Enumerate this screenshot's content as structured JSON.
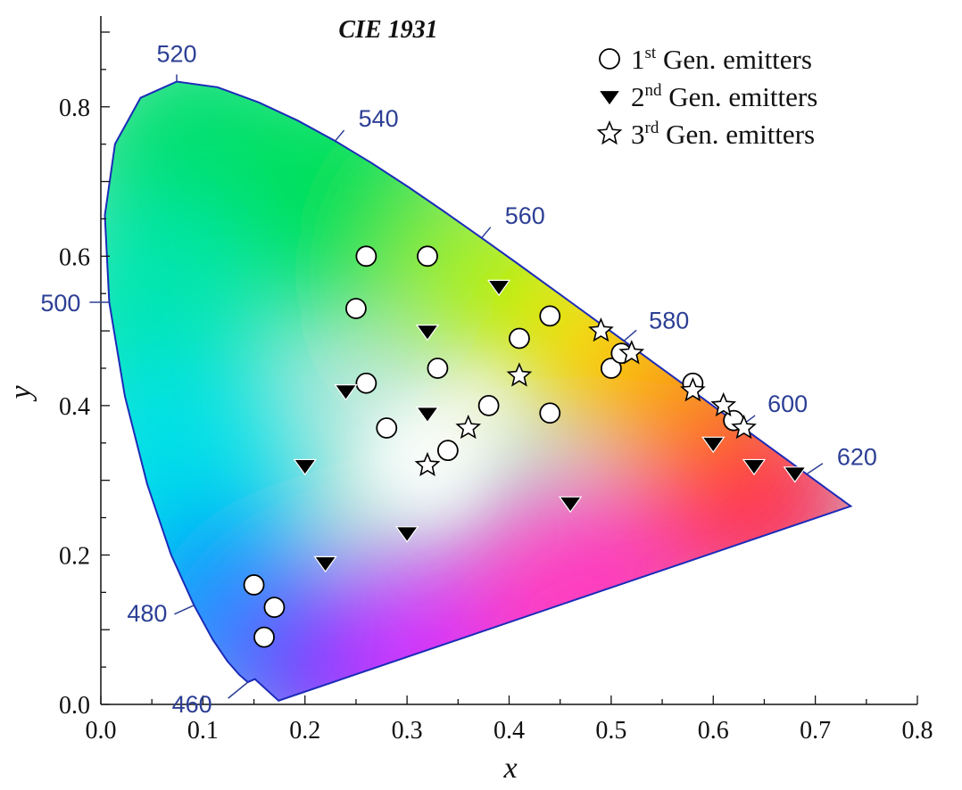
{
  "chart_data": {
    "type": "scatter",
    "title": "CIE 1931",
    "xlabel": "x",
    "ylabel": "y",
    "xlim": [
      0.0,
      0.8
    ],
    "ylim": [
      0.0,
      0.9
    ],
    "x_ticks": [
      "0.0",
      "0.1",
      "0.2",
      "0.3",
      "0.4",
      "0.5",
      "0.6",
      "0.7",
      "0.8"
    ],
    "y_ticks": [
      "0.0",
      "0.2",
      "0.4",
      "0.6",
      "0.8"
    ],
    "grid": false,
    "legend_position": "top-right",
    "spectral_locus": [
      [
        0.1741,
        0.005
      ],
      [
        0.151,
        0.0339
      ],
      [
        0.144,
        0.0297
      ],
      [
        0.1355,
        0.0399
      ],
      [
        0.1241,
        0.0578
      ],
      [
        0.1096,
        0.0868
      ],
      [
        0.0913,
        0.1327
      ],
      [
        0.0687,
        0.2007
      ],
      [
        0.0454,
        0.295
      ],
      [
        0.0235,
        0.4127
      ],
      [
        0.0082,
        0.5384
      ],
      [
        0.0039,
        0.6548
      ],
      [
        0.0139,
        0.7502
      ],
      [
        0.0389,
        0.812
      ],
      [
        0.0743,
        0.8338
      ],
      [
        0.1142,
        0.8262
      ],
      [
        0.1547,
        0.8059
      ],
      [
        0.1929,
        0.7816
      ],
      [
        0.2296,
        0.7543
      ],
      [
        0.2658,
        0.7243
      ],
      [
        0.3016,
        0.6923
      ],
      [
        0.3373,
        0.6589
      ],
      [
        0.3731,
        0.6245
      ],
      [
        0.4087,
        0.5896
      ],
      [
        0.4441,
        0.5547
      ],
      [
        0.4788,
        0.5202
      ],
      [
        0.5125,
        0.4866
      ],
      [
        0.5448,
        0.4544
      ],
      [
        0.5752,
        0.4242
      ],
      [
        0.6029,
        0.3965
      ],
      [
        0.627,
        0.3725
      ],
      [
        0.6482,
        0.3514
      ],
      [
        0.6658,
        0.334
      ],
      [
        0.6801,
        0.3197
      ],
      [
        0.6915,
        0.3083
      ],
      [
        0.7006,
        0.2993
      ],
      [
        0.7079,
        0.292
      ],
      [
        0.714,
        0.2859
      ],
      [
        0.719,
        0.2809
      ],
      [
        0.723,
        0.277
      ],
      [
        0.726,
        0.274
      ],
      [
        0.7283,
        0.2717
      ],
      [
        0.73,
        0.27
      ],
      [
        0.7311,
        0.2689
      ],
      [
        0.732,
        0.268
      ],
      [
        0.7334,
        0.2666
      ],
      [
        0.7347,
        0.2653
      ]
    ],
    "wavelength_labels": [
      {
        "label": "460",
        "x": 0.144,
        "y": 0.0297
      },
      {
        "label": "480",
        "x": 0.0913,
        "y": 0.1327
      },
      {
        "label": "500",
        "x": 0.0082,
        "y": 0.5384
      },
      {
        "label": "520",
        "x": 0.0743,
        "y": 0.8338
      },
      {
        "label": "540",
        "x": 0.2296,
        "y": 0.7543
      },
      {
        "label": "560",
        "x": 0.3731,
        "y": 0.6245
      },
      {
        "label": "580",
        "x": 0.5125,
        "y": 0.4866
      },
      {
        "label": "600",
        "x": 0.627,
        "y": 0.3725
      },
      {
        "label": "620",
        "x": 0.6915,
        "y": 0.3083
      }
    ],
    "series": [
      {
        "name": "1st Gen. emitters",
        "name_parts": [
          "1",
          "st",
          " Gen. emitters"
        ],
        "marker": "circle",
        "points": [
          [
            0.15,
            0.16
          ],
          [
            0.17,
            0.13
          ],
          [
            0.16,
            0.09
          ],
          [
            0.26,
            0.6
          ],
          [
            0.32,
            0.6
          ],
          [
            0.25,
            0.53
          ],
          [
            0.26,
            0.43
          ],
          [
            0.28,
            0.37
          ],
          [
            0.33,
            0.45
          ],
          [
            0.34,
            0.34
          ],
          [
            0.38,
            0.4
          ],
          [
            0.41,
            0.49
          ],
          [
            0.44,
            0.52
          ],
          [
            0.44,
            0.39
          ],
          [
            0.5,
            0.45
          ],
          [
            0.51,
            0.47
          ],
          [
            0.58,
            0.43
          ],
          [
            0.62,
            0.38
          ]
        ]
      },
      {
        "name": "2nd Gen. emitters",
        "name_parts": [
          "2",
          "nd",
          " Gen. emitters"
        ],
        "marker": "triangle-down",
        "points": [
          [
            0.39,
            0.56
          ],
          [
            0.32,
            0.5
          ],
          [
            0.24,
            0.42
          ],
          [
            0.32,
            0.39
          ],
          [
            0.2,
            0.32
          ],
          [
            0.3,
            0.23
          ],
          [
            0.22,
            0.19
          ],
          [
            0.46,
            0.27
          ],
          [
            0.6,
            0.35
          ],
          [
            0.64,
            0.32
          ],
          [
            0.68,
            0.31
          ]
        ]
      },
      {
        "name": "3rd Gen. emitters",
        "name_parts": [
          "3",
          "rd",
          " Gen. emitters"
        ],
        "marker": "star",
        "points": [
          [
            0.32,
            0.32
          ],
          [
            0.36,
            0.37
          ],
          [
            0.41,
            0.44
          ],
          [
            0.49,
            0.5
          ],
          [
            0.52,
            0.47
          ],
          [
            0.58,
            0.42
          ],
          [
            0.61,
            0.4
          ],
          [
            0.63,
            0.37
          ]
        ]
      }
    ]
  },
  "colors": {
    "locus_stroke": "#1c2bb8",
    "wavelength_label": "#2c3f95",
    "axis": "#111111",
    "marker_fill_open": "#ffffff",
    "marker_fill_solid": "#000000"
  }
}
